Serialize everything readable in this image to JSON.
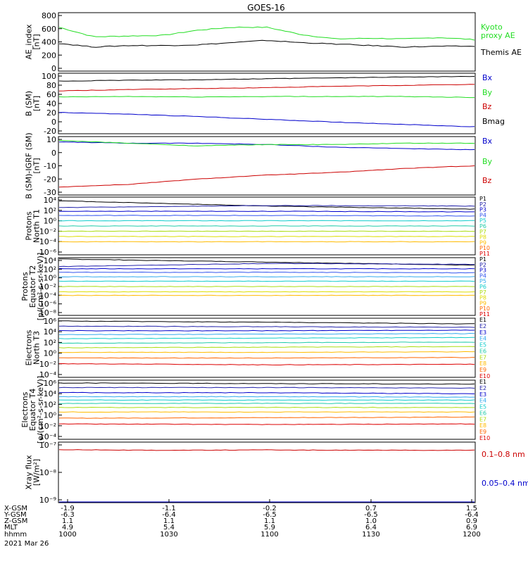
{
  "title": "GOES-16",
  "colors": {
    "black": "#000000",
    "green": "#22dd22",
    "red": "#cc0000",
    "blue": "#0000cc",
    "navy": "#2222aa",
    "royal": "#3355ee",
    "sky": "#33aaee",
    "cyan": "#11cccc",
    "teal": "#22ccaa",
    "lime": "#66dd33",
    "yellowgreen": "#aadd11",
    "yellow": "#dddd00",
    "orange": "#ffbb00",
    "orangered": "#ff6600",
    "darkred": "#bb1111",
    "crimson": "#dd0000"
  },
  "panels": [
    {
      "ylabel": [
        "AE_index",
        "[nT]"
      ],
      "ticks": [
        "0",
        "200",
        "400",
        "600",
        "800"
      ],
      "ymin": 0,
      "ymax": 800,
      "scale": "linear",
      "legend": [
        {
          "text": "Kyoto",
          "color": "green"
        },
        {
          "text": "proxy AE",
          "color": "green"
        },
        {
          "text": "",
          "color": "black"
        },
        {
          "text": "Themis AE",
          "color": "black"
        }
      ]
    },
    {
      "ylabel": [
        "B (SM)",
        "[nT]"
      ],
      "ticks": [
        "-20",
        "0",
        "20",
        "40",
        "60",
        "80",
        "100"
      ],
      "ymin": -25,
      "ymax": 105,
      "scale": "linear",
      "legend": [
        {
          "text": "Bx",
          "color": "blue"
        },
        {
          "text": "By",
          "color": "green"
        },
        {
          "text": "Bz",
          "color": "red"
        },
        {
          "text": "Bmag",
          "color": "black"
        }
      ]
    },
    {
      "ylabel": [
        "B (SM)-IGRF (SM)",
        "[nT]"
      ],
      "ticks": [
        "-30",
        "-20",
        "-10",
        "0",
        "10"
      ],
      "ymin": -32,
      "ymax": 12,
      "scale": "linear",
      "legend": [
        {
          "text": "Bx",
          "color": "blue"
        },
        {
          "text": "By",
          "color": "green"
        },
        {
          "text": "Bz",
          "color": "red"
        }
      ]
    },
    {
      "ylabel": [
        "Protons",
        "North T1"
      ],
      "ticks": [
        "10⁻⁶",
        "10⁻⁴",
        "10⁻²",
        "10⁰",
        "10²",
        "10⁴"
      ],
      "ymin": -6.5,
      "ymax": 4.5,
      "scale": "log",
      "legend": [
        {
          "text": "P1",
          "color": "black"
        },
        {
          "text": "P2",
          "color": "navy"
        },
        {
          "text": "P3",
          "color": "blue"
        },
        {
          "text": "P4",
          "color": "royal"
        },
        {
          "text": "P5",
          "color": "cyan"
        },
        {
          "text": "P6",
          "color": "teal"
        },
        {
          "text": "P7",
          "color": "yellowgreen"
        },
        {
          "text": "P8",
          "color": "yellow"
        },
        {
          "text": "P9",
          "color": "orange"
        },
        {
          "text": "P10",
          "color": "orangered"
        },
        {
          "text": "P11",
          "color": "crimson"
        }
      ]
    },
    {
      "ylabel": [
        "Protons",
        "Equator T2",
        "[p/(cm²-s-sr-keV)]"
      ],
      "ticks": [
        "10⁻⁸",
        "10⁻⁶",
        "10⁻⁴",
        "10⁻²",
        "10⁰",
        "10²",
        "10⁴"
      ],
      "ymin": -8.5,
      "ymax": 4.5,
      "scale": "log",
      "legend": [
        {
          "text": "P1",
          "color": "black"
        },
        {
          "text": "P2",
          "color": "navy"
        },
        {
          "text": "P3",
          "color": "blue"
        },
        {
          "text": "P4",
          "color": "royal"
        },
        {
          "text": "P5",
          "color": "sky"
        },
        {
          "text": "P6",
          "color": "cyan"
        },
        {
          "text": "P7",
          "color": "yellowgreen"
        },
        {
          "text": "P8",
          "color": "yellow"
        },
        {
          "text": "P9",
          "color": "orange"
        },
        {
          "text": "P10",
          "color": "orangered"
        },
        {
          "text": "P11",
          "color": "crimson"
        }
      ]
    },
    {
      "ylabel": [
        "Electrons",
        "North T3"
      ],
      "ticks": [
        "10⁻⁴",
        "10⁻²",
        "10⁰",
        "10²",
        "10⁴",
        "10⁶"
      ],
      "ymin": -4.2,
      "ymax": 6.2,
      "scale": "log",
      "legend": [
        {
          "text": "E1",
          "color": "black"
        },
        {
          "text": "E2",
          "color": "navy"
        },
        {
          "text": "E3",
          "color": "blue"
        },
        {
          "text": "E4",
          "color": "sky"
        },
        {
          "text": "E5",
          "color": "cyan"
        },
        {
          "text": "E6",
          "color": "teal"
        },
        {
          "text": "E7",
          "color": "yellowgreen"
        },
        {
          "text": "E8",
          "color": "orange"
        },
        {
          "text": "E9",
          "color": "orangered"
        },
        {
          "text": "E10",
          "color": "crimson"
        }
      ]
    },
    {
      "ylabel": [
        "Electrons",
        "Equator T4",
        "[e/(cm²-s-sr-keV)]"
      ],
      "ticks": [
        "10⁻⁴",
        "10⁻²",
        "10⁰",
        "10²",
        "10⁴",
        "10⁶"
      ],
      "ymin": -4.2,
      "ymax": 6.2,
      "scale": "log",
      "legend": [
        {
          "text": "E1",
          "color": "black"
        },
        {
          "text": "E2",
          "color": "navy"
        },
        {
          "text": "E3",
          "color": "blue"
        },
        {
          "text": "E4",
          "color": "sky"
        },
        {
          "text": "E5",
          "color": "cyan"
        },
        {
          "text": "E6",
          "color": "teal"
        },
        {
          "text": "E7",
          "color": "yellowgreen"
        },
        {
          "text": "E8",
          "color": "orange"
        },
        {
          "text": "E9",
          "color": "orangered"
        },
        {
          "text": "E10",
          "color": "crimson"
        }
      ]
    },
    {
      "ylabel": [
        "Xray flux",
        "[W/m²]"
      ],
      "ticks": [
        "10⁻⁹",
        "10⁻⁸",
        "10⁻⁷"
      ],
      "ymin": -9,
      "ymax": -7,
      "scale": "log",
      "legend": [
        {
          "text": "0.1–0.8 nm",
          "color": "red"
        },
        {
          "text": "0.05–0.4 nm",
          "color": "blue"
        }
      ]
    }
  ],
  "x_axis": {
    "row_labels": [
      "X-GSM",
      "Y-GSM",
      "Z-GSM",
      "MLT",
      "hhmm"
    ],
    "columns": [
      [
        "-1.9",
        "-6.3",
        "1.1",
        "4.9",
        "1000"
      ],
      [
        "-1.1",
        "-6.4",
        "1.1",
        "5.4",
        "1030"
      ],
      [
        "-0.2",
        "-6.5",
        "1.1",
        "5.9",
        "1100"
      ],
      [
        "0.7",
        "-6.5",
        "1.0",
        "6.4",
        "1130"
      ],
      [
        "1.5",
        "-6.4",
        "0.9",
        "6.9",
        "1200"
      ]
    ],
    "date": "2021 Mar 26"
  },
  "chart_data": [
    {
      "type": "line",
      "ylabel": "AE_index [nT]",
      "ylim": [
        0,
        800
      ],
      "x": [
        "1000",
        "1010",
        "1020",
        "1030",
        "1040",
        "1050",
        "1100",
        "1110",
        "1120",
        "1130",
        "1140",
        "1150",
        "1200"
      ],
      "series": [
        {
          "name": "Kyoto proxy AE",
          "color": "green",
          "values": [
            600,
            470,
            480,
            490,
            560,
            600,
            600,
            500,
            440,
            450,
            440,
            460,
            430
          ]
        },
        {
          "name": "Themis AE",
          "color": "black",
          "values": [
            380,
            330,
            350,
            350,
            360,
            390,
            420,
            390,
            370,
            350,
            330,
            340,
            340
          ]
        }
      ]
    },
    {
      "type": "line",
      "ylabel": "B (SM) [nT]",
      "ylim": [
        -25,
        105
      ],
      "x": [
        "1000",
        "1020",
        "1040",
        "1100",
        "1120",
        "1140",
        "1200"
      ],
      "series": [
        {
          "name": "Bx",
          "color": "blue",
          "values": [
            21,
            17,
            12,
            6,
            0,
            -5,
            -10
          ]
        },
        {
          "name": "By",
          "color": "green",
          "values": [
            54,
            55,
            54,
            55,
            55,
            55,
            53
          ]
        },
        {
          "name": "Bz",
          "color": "red",
          "values": [
            67,
            70,
            72,
            74,
            77,
            79,
            81
          ]
        },
        {
          "name": "Bmag",
          "color": "black",
          "values": [
            88,
            90,
            91,
            93,
            95,
            97,
            98
          ]
        }
      ]
    },
    {
      "type": "line",
      "ylabel": "B (SM)-IGRF (SM) [nT]",
      "ylim": [
        -32,
        12
      ],
      "x": [
        "1000",
        "1020",
        "1040",
        "1100",
        "1120",
        "1140",
        "1200"
      ],
      "series": [
        {
          "name": "Bx",
          "color": "blue",
          "values": [
            8,
            7,
            7,
            6,
            4,
            3,
            2
          ]
        },
        {
          "name": "By",
          "color": "green",
          "values": [
            9,
            7,
            5,
            6,
            6,
            7,
            7
          ]
        },
        {
          "name": "Bz",
          "color": "red",
          "values": [
            -26,
            -24,
            -20,
            -17,
            -15,
            -12,
            -10
          ]
        }
      ]
    },
    {
      "type": "line",
      "ylabel": "Protons North T1",
      "scale": "log",
      "x": [
        "1000",
        "1100",
        "1200"
      ],
      "series": [
        {
          "name": "P1",
          "color": "black",
          "log10_values": [
            3.8,
            2.8,
            2.2
          ]
        },
        {
          "name": "P2",
          "color": "navy",
          "log10_values": [
            2.5,
            2.9,
            2.8
          ]
        },
        {
          "name": "P3",
          "color": "blue",
          "log10_values": [
            1.8,
            1.8,
            1.7
          ]
        },
        {
          "name": "P4",
          "color": "royal",
          "log10_values": [
            1.0,
            1.0,
            0.9
          ]
        },
        {
          "name": "P5",
          "color": "cyan",
          "log10_values": [
            0.0,
            0.0,
            0.0
          ]
        },
        {
          "name": "P6",
          "color": "teal",
          "log10_values": [
            -1.0,
            -1.0,
            -1.0
          ]
        },
        {
          "name": "P7",
          "color": "yellowgreen",
          "log10_values": [
            -2.0,
            -2.0,
            -2.0
          ]
        },
        {
          "name": "P8",
          "color": "yellow",
          "log10_values": [
            -3.0,
            -3.0,
            -3.0
          ]
        },
        {
          "name": "P9",
          "color": "orange",
          "log10_values": [
            -4.0,
            -4.0,
            -4.0
          ]
        }
      ]
    },
    {
      "type": "line",
      "ylabel": "Protons Equator T2 [p/(cm²-s-sr-keV)]",
      "scale": "log",
      "x": [
        "1000",
        "1100",
        "1200"
      ],
      "series": [
        {
          "name": "P1",
          "color": "black",
          "log10_values": [
            4.2,
            3.5,
            2.8
          ]
        },
        {
          "name": "P2",
          "color": "navy",
          "log10_values": [
            2.5,
            3.2,
            3.0
          ]
        },
        {
          "name": "P3",
          "color": "blue",
          "log10_values": [
            2.0,
            2.0,
            2.0
          ]
        },
        {
          "name": "P4",
          "color": "royal",
          "log10_values": [
            1.2,
            1.2,
            1.1
          ]
        },
        {
          "name": "P5",
          "color": "sky",
          "log10_values": [
            0.2,
            0.2,
            0.2
          ]
        },
        {
          "name": "P6",
          "color": "cyan",
          "log10_values": [
            -0.8,
            -0.8,
            -0.8
          ]
        },
        {
          "name": "P7",
          "color": "yellowgreen",
          "log10_values": [
            -2.0,
            -2.0,
            -2.0
          ]
        },
        {
          "name": "P8",
          "color": "yellow",
          "log10_values": [
            -3.2,
            -3.2,
            -3.2
          ]
        },
        {
          "name": "P9",
          "color": "orange",
          "log10_values": [
            -4.0,
            -4.0,
            -4.0
          ]
        }
      ]
    },
    {
      "type": "line",
      "ylabel": "Electrons North T3",
      "scale": "log",
      "x": [
        "1000",
        "1100",
        "1200"
      ],
      "series": [
        {
          "name": "E1",
          "color": "black",
          "log10_values": [
            5.7,
            5.5,
            5.2
          ]
        },
        {
          "name": "E2",
          "color": "navy",
          "log10_values": [
            4.8,
            4.7,
            4.6
          ]
        },
        {
          "name": "E3",
          "color": "blue",
          "log10_values": [
            4.0,
            4.0,
            4.1
          ]
        },
        {
          "name": "E4",
          "color": "sky",
          "log10_values": [
            3.3,
            3.4,
            3.5
          ]
        },
        {
          "name": "E5",
          "color": "cyan",
          "log10_values": [
            2.6,
            2.7,
            2.8
          ]
        },
        {
          "name": "E6",
          "color": "teal",
          "log10_values": [
            1.8,
            1.9,
            2.0
          ]
        },
        {
          "name": "E7",
          "color": "yellowgreen",
          "log10_values": [
            1.0,
            1.1,
            1.2
          ]
        },
        {
          "name": "E8",
          "color": "orange",
          "log10_values": [
            0.2,
            0.2,
            0.3
          ]
        },
        {
          "name": "E9",
          "color": "orangered",
          "log10_values": [
            -0.8,
            -0.8,
            -0.7
          ]
        },
        {
          "name": "E10",
          "color": "crimson",
          "log10_values": [
            -1.8,
            -2.0,
            -1.9
          ]
        }
      ]
    },
    {
      "type": "line",
      "ylabel": "Electrons Equator T4 [e/(cm²-s-sr-keV)]",
      "scale": "log",
      "x": [
        "1000",
        "1100",
        "1200"
      ],
      "series": [
        {
          "name": "E1",
          "color": "black",
          "log10_values": [
            5.7,
            5.6,
            5.5
          ]
        },
        {
          "name": "E2",
          "color": "navy",
          "log10_values": [
            4.9,
            4.9,
            4.8
          ]
        },
        {
          "name": "E3",
          "color": "blue",
          "log10_values": [
            4.0,
            4.0,
            3.8
          ]
        },
        {
          "name": "E4",
          "color": "sky",
          "log10_values": [
            3.3,
            3.3,
            3.2
          ]
        },
        {
          "name": "E5",
          "color": "cyan",
          "log10_values": [
            2.7,
            2.7,
            2.7
          ]
        },
        {
          "name": "E6",
          "color": "teal",
          "log10_values": [
            2.1,
            2.1,
            2.1
          ]
        },
        {
          "name": "E7",
          "color": "yellowgreen",
          "log10_values": [
            1.4,
            1.4,
            1.4
          ]
        },
        {
          "name": "E8",
          "color": "orange",
          "log10_values": [
            0.6,
            0.6,
            0.6
          ]
        },
        {
          "name": "E9",
          "color": "orangered",
          "log10_values": [
            -0.5,
            -0.4,
            -0.3
          ]
        },
        {
          "name": "E10",
          "color": "crimson",
          "log10_values": [
            -1.5,
            -1.6,
            -1.5
          ]
        }
      ]
    },
    {
      "type": "line",
      "ylabel": "Xray flux [W/m²]",
      "scale": "log",
      "x": [
        "1000",
        "1030",
        "1100",
        "1130",
        "1200"
      ],
      "series": [
        {
          "name": "0.1–0.8 nm",
          "color": "red",
          "log10_values": [
            -7.25,
            -7.27,
            -7.26,
            -7.27,
            -7.27
          ]
        },
        {
          "name": "0.05–0.4 nm",
          "color": "blue",
          "log10_values": [
            -9.0,
            -9.0,
            -9.0,
            -9.0,
            -9.0
          ]
        }
      ]
    }
  ]
}
